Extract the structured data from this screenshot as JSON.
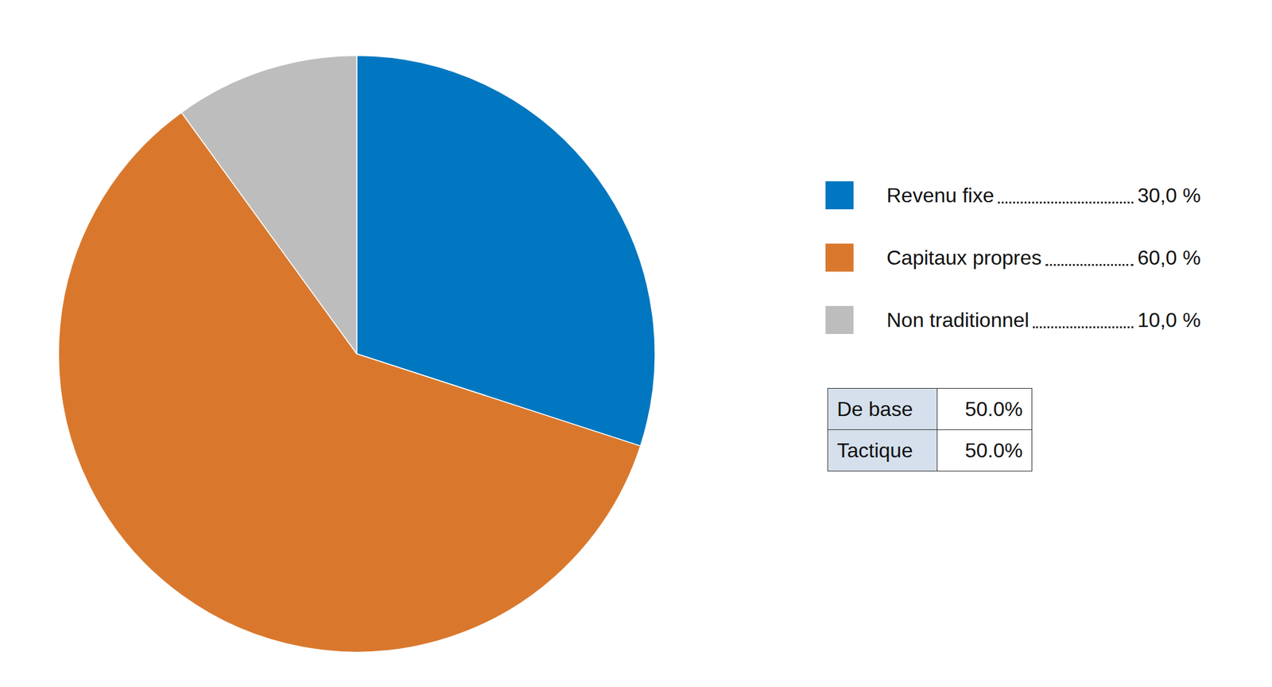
{
  "chart_data": {
    "type": "pie",
    "categories": [
      "Revenu fixe",
      "Capitaux propres",
      "Non traditionnel"
    ],
    "values": [
      30,
      60,
      10
    ],
    "value_labels": [
      "30,0 %",
      "60,0 %",
      "10,0 %"
    ],
    "colors": [
      "#0077c0",
      "#d9782d",
      "#bdbdbd"
    ],
    "table": {
      "rows": [
        [
          "De base",
          "50.0%"
        ],
        [
          "Tactique",
          "50.0%"
        ]
      ]
    }
  }
}
